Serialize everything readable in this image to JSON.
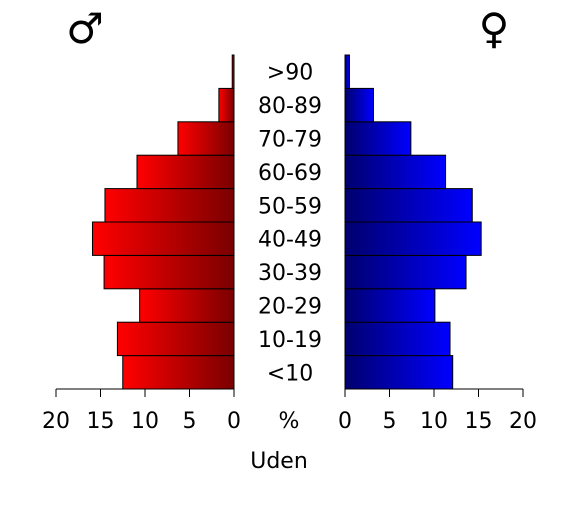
{
  "chart_data": {
    "type": "bar",
    "orientation": "horizontal",
    "layout": "population-pyramid",
    "categories": [
      "<10",
      "10-19",
      "20-29",
      "30-39",
      "40-49",
      "50-59",
      "60-69",
      "70-79",
      "80-89",
      ">90"
    ],
    "series": [
      {
        "name": "♂",
        "side": "left",
        "color_light": "#ff0000",
        "color_dark": "#7a0000",
        "values": [
          12.5,
          13.1,
          10.6,
          14.6,
          15.9,
          14.5,
          10.9,
          6.3,
          1.7,
          0.2
        ]
      },
      {
        "name": "♀",
        "side": "right",
        "color_light": "#0000ff",
        "color_dark": "#00006e",
        "values": [
          12.1,
          11.8,
          10.1,
          13.6,
          15.3,
          14.3,
          11.3,
          7.4,
          3.2,
          0.5
        ]
      }
    ],
    "left_ticks": [
      "20",
      "15",
      "10",
      "5",
      "0"
    ],
    "right_ticks": [
      "0",
      "5",
      "10",
      "15",
      "20"
    ],
    "xlim": [
      0,
      20
    ],
    "unit_label": "%",
    "xlabel": "Uden",
    "grid": false
  }
}
